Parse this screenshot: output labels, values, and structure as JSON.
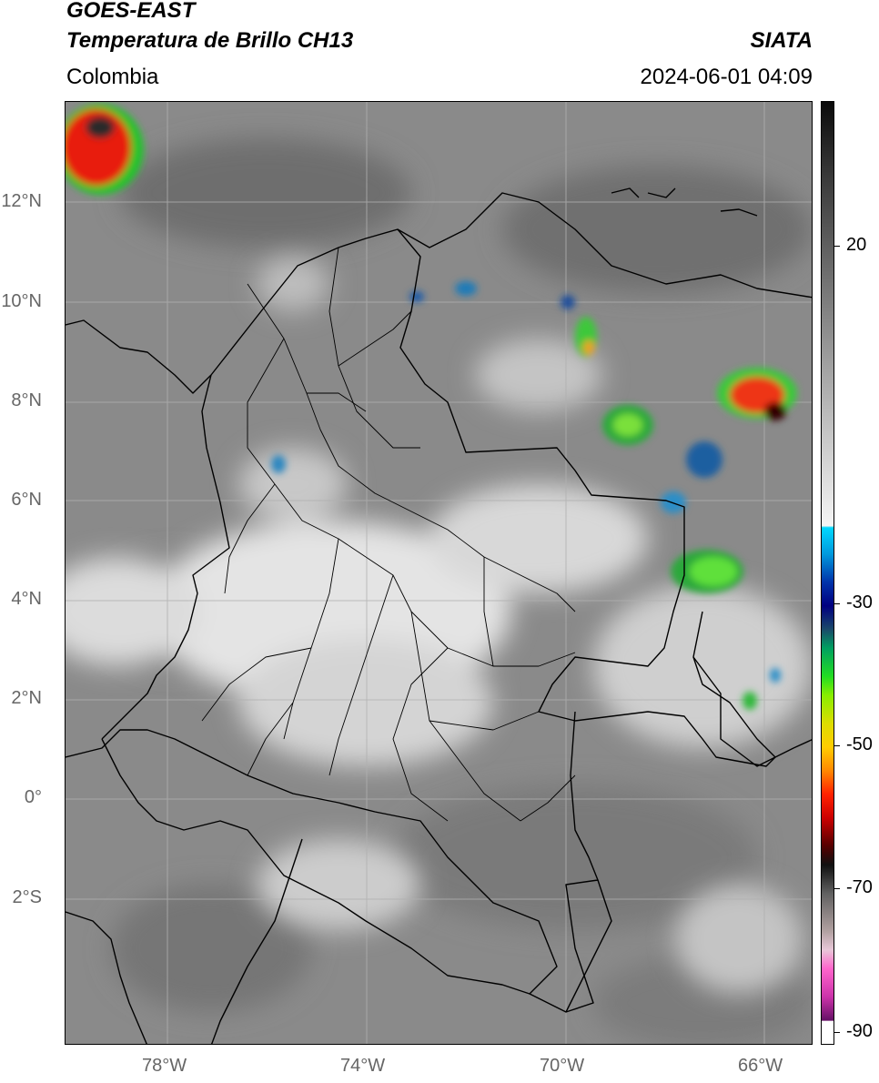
{
  "header": {
    "satellite": "GOES-EAST",
    "product": "Temperatura de Brillo CH13",
    "source": "SIATA",
    "region": "Colombia",
    "datetime": "2024-06-01 04:09"
  },
  "map": {
    "lat_labels": [
      "12°N",
      "10°N",
      "8°N",
      "6°N",
      "4°N",
      "2°N",
      "0°",
      "2°S"
    ],
    "lon_labels": [
      "78°W",
      "74°W",
      "70°W",
      "66°W"
    ],
    "background_color": "#8a8a8a",
    "border_color": "#000000",
    "grid_color": "#b0b0b0"
  },
  "colorbar": {
    "labels": [
      "20",
      "-30",
      "-50",
      "-70",
      "-90"
    ],
    "units": ""
  }
}
